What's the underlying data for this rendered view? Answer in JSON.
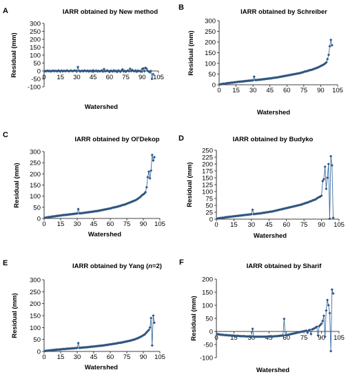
{
  "chart_data": [
    {
      "panel_letter": "A",
      "type": "line",
      "title": "IARR obtained by New method",
      "xlabel": "Watershed",
      "ylabel": "Residual (mm)",
      "xlim": [
        0,
        105
      ],
      "ylim": [
        -100,
        300
      ],
      "xticks": [
        0,
        15,
        30,
        45,
        60,
        75,
        90,
        105
      ],
      "yticks": [
        -100,
        -50,
        0,
        50,
        100,
        150,
        200,
        250,
        300
      ],
      "ytick_labels": [
        "-100",
        "-50",
        "0",
        "50",
        "100",
        "150",
        "200",
        "250",
        "300"
      ],
      "x_axis_at": 0,
      "x": [
        1,
        2,
        3,
        4,
        5,
        6,
        7,
        8,
        9,
        10,
        11,
        12,
        13,
        14,
        15,
        16,
        17,
        18,
        19,
        20,
        21,
        22,
        23,
        24,
        25,
        26,
        27,
        28,
        29,
        30,
        31,
        32,
        33,
        34,
        35,
        36,
        37,
        38,
        39,
        40,
        41,
        42,
        43,
        44,
        45,
        46,
        47,
        48,
        49,
        50,
        51,
        52,
        53,
        54,
        55,
        56,
        57,
        58,
        59,
        60,
        61,
        62,
        63,
        64,
        65,
        66,
        67,
        68,
        69,
        70,
        71,
        72,
        73,
        74,
        75,
        76,
        77,
        78,
        79,
        80,
        81,
        82,
        83,
        84,
        85,
        86,
        87,
        88,
        89,
        90,
        91,
        92,
        93,
        94,
        95,
        96,
        97,
        98,
        99,
        100
      ],
      "values": [
        0,
        -2,
        2,
        -1,
        1,
        -3,
        0,
        2,
        -1,
        1,
        0,
        -2,
        3,
        -1,
        0,
        2,
        -2,
        1,
        0,
        -1,
        3,
        0,
        -2,
        1,
        2,
        -1,
        0,
        3,
        1,
        -2,
        25,
        2,
        -3,
        0,
        1,
        -2,
        3,
        0,
        -1,
        2,
        -3,
        1,
        0,
        -2,
        4,
        -1,
        0,
        2,
        -3,
        1,
        -2,
        0,
        3,
        -4,
        12,
        -2,
        0,
        3,
        -1,
        -6,
        2,
        0,
        -3,
        4,
        -2,
        1,
        -6,
        3,
        0,
        -5,
        2,
        10,
        -3,
        1,
        -4,
        0,
        3,
        -2,
        14,
        -1,
        6,
        0,
        -2,
        3,
        -5,
        2,
        -1,
        0,
        -4,
        12,
        16,
        -2,
        20,
        15,
        2,
        -3,
        -8,
        0,
        -50,
        -20
      ],
      "series_color": "#3b6ea5",
      "marker_color": "#2e5580",
      "grid": false
    },
    {
      "panel_letter": "B",
      "type": "line",
      "title": "IARR obtained by Schreiber",
      "xlabel": "Watershed",
      "ylabel": "Residual (mm)",
      "xlim": [
        0,
        105
      ],
      "ylim": [
        0,
        300
      ],
      "xticks": [
        0,
        15,
        30,
        45,
        60,
        75,
        90,
        105
      ],
      "yticks": [
        0,
        50,
        100,
        150,
        200,
        250,
        300
      ],
      "ytick_labels": [
        "0",
        "50",
        "100",
        "150",
        "200",
        "250",
        "300"
      ],
      "x_axis_at": 0,
      "x": [
        1,
        2,
        3,
        4,
        5,
        6,
        7,
        8,
        9,
        10,
        11,
        12,
        13,
        14,
        15,
        16,
        17,
        18,
        19,
        20,
        21,
        22,
        23,
        24,
        25,
        26,
        27,
        28,
        29,
        30,
        31,
        32,
        33,
        34,
        35,
        36,
        37,
        38,
        39,
        40,
        41,
        42,
        43,
        44,
        45,
        46,
        47,
        48,
        49,
        50,
        51,
        52,
        53,
        54,
        55,
        56,
        57,
        58,
        59,
        60,
        61,
        62,
        63,
        64,
        65,
        66,
        67,
        68,
        69,
        70,
        71,
        72,
        73,
        74,
        75,
        76,
        77,
        78,
        79,
        80,
        81,
        82,
        83,
        84,
        85,
        86,
        87,
        88,
        89,
        90,
        91,
        92,
        93,
        94,
        95,
        96,
        97,
        98,
        99,
        100
      ],
      "values": [
        2,
        3,
        4,
        5,
        5,
        6,
        7,
        8,
        8,
        9,
        10,
        10,
        11,
        12,
        12,
        13,
        14,
        14,
        15,
        15,
        16,
        16,
        17,
        18,
        18,
        19,
        19,
        20,
        20,
        21,
        38,
        22,
        22,
        23,
        23,
        24,
        24,
        25,
        26,
        26,
        27,
        28,
        28,
        29,
        30,
        30,
        31,
        32,
        33,
        33,
        34,
        35,
        36,
        37,
        38,
        39,
        40,
        41,
        42,
        43,
        44,
        45,
        46,
        47,
        48,
        49,
        50,
        51,
        52,
        53,
        54,
        55,
        57,
        58,
        60,
        62,
        63,
        64,
        66,
        68,
        69,
        70,
        72,
        74,
        76,
        78,
        80,
        82,
        85,
        88,
        90,
        93,
        96,
        100,
        105,
        120,
        140,
        180,
        210,
        185
      ],
      "series_color": "#3b6ea5",
      "marker_color": "#2e5580",
      "grid": false
    },
    {
      "panel_letter": "C",
      "type": "line",
      "title": "IARR obtained by Ol'Dekop",
      "xlabel": "Watershed",
      "ylabel": "Residual (mm)",
      "xlim": [
        0,
        105
      ],
      "ylim": [
        0,
        300
      ],
      "xticks": [
        0,
        15,
        30,
        45,
        60,
        75,
        90,
        105
      ],
      "yticks": [
        0,
        50,
        100,
        150,
        200,
        250,
        300
      ],
      "ytick_labels": [
        "0",
        "50",
        "100",
        "150",
        "200",
        "250",
        "300"
      ],
      "x_axis_at": 0,
      "x": [
        1,
        2,
        3,
        4,
        5,
        6,
        7,
        8,
        9,
        10,
        11,
        12,
        13,
        14,
        15,
        16,
        17,
        18,
        19,
        20,
        21,
        22,
        23,
        24,
        25,
        26,
        27,
        28,
        29,
        30,
        31,
        32,
        33,
        34,
        35,
        36,
        37,
        38,
        39,
        40,
        41,
        42,
        43,
        44,
        45,
        46,
        47,
        48,
        49,
        50,
        51,
        52,
        53,
        54,
        55,
        56,
        57,
        58,
        59,
        60,
        61,
        62,
        63,
        64,
        65,
        66,
        67,
        68,
        69,
        70,
        71,
        72,
        73,
        74,
        75,
        76,
        77,
        78,
        79,
        80,
        81,
        82,
        83,
        84,
        85,
        86,
        87,
        88,
        89,
        90,
        91,
        92,
        93,
        94,
        95,
        96,
        97,
        98,
        99,
        100
      ],
      "values": [
        3,
        4,
        5,
        6,
        6,
        7,
        8,
        9,
        9,
        10,
        11,
        11,
        12,
        13,
        13,
        14,
        15,
        15,
        16,
        16,
        17,
        17,
        18,
        19,
        19,
        20,
        20,
        21,
        22,
        22,
        42,
        23,
        23,
        24,
        24,
        25,
        26,
        26,
        27,
        28,
        28,
        29,
        30,
        30,
        31,
        32,
        33,
        33,
        34,
        35,
        36,
        37,
        38,
        39,
        40,
        41,
        42,
        43,
        44,
        45,
        46,
        48,
        49,
        50,
        51,
        52,
        54,
        55,
        56,
        58,
        60,
        61,
        62,
        64,
        66,
        68,
        70,
        72,
        74,
        76,
        78,
        80,
        82,
        85,
        88,
        92,
        95,
        100,
        105,
        108,
        112,
        118,
        140,
        185,
        210,
        180,
        215,
        285,
        260,
        275
      ],
      "series_color": "#3b6ea5",
      "marker_color": "#2e5580",
      "grid": false
    },
    {
      "panel_letter": "D",
      "type": "line",
      "title": "IARR obtained by Budyko",
      "xlabel": "Watershed",
      "ylabel": "Residual (mm)",
      "xlim": [
        0,
        105
      ],
      "ylim": [
        0,
        250
      ],
      "xticks": [
        0,
        15,
        30,
        45,
        60,
        75,
        90,
        105
      ],
      "yticks": [
        0,
        25,
        50,
        75,
        100,
        125,
        150,
        175,
        200,
        225,
        250
      ],
      "ytick_labels": [
        "0",
        "25",
        "50",
        "75",
        "100",
        "125",
        "150",
        "175",
        "200",
        "225",
        "250"
      ],
      "x_axis_at": 0,
      "x": [
        1,
        2,
        3,
        4,
        5,
        6,
        7,
        8,
        9,
        10,
        11,
        12,
        13,
        14,
        15,
        16,
        17,
        18,
        19,
        20,
        21,
        22,
        23,
        24,
        25,
        26,
        27,
        28,
        29,
        30,
        31,
        32,
        33,
        34,
        35,
        36,
        37,
        38,
        39,
        40,
        41,
        42,
        43,
        44,
        45,
        46,
        47,
        48,
        49,
        50,
        51,
        52,
        53,
        54,
        55,
        56,
        57,
        58,
        59,
        60,
        61,
        62,
        63,
        64,
        65,
        66,
        67,
        68,
        69,
        70,
        71,
        72,
        73,
        74,
        75,
        76,
        77,
        78,
        79,
        80,
        81,
        82,
        83,
        84,
        85,
        86,
        87,
        88,
        89,
        90,
        91,
        92,
        93,
        94,
        95,
        96,
        97,
        98,
        99,
        100
      ],
      "values": [
        2,
        3,
        4,
        4,
        5,
        5,
        6,
        7,
        7,
        8,
        8,
        9,
        9,
        10,
        10,
        11,
        11,
        12,
        12,
        13,
        13,
        14,
        14,
        15,
        15,
        16,
        16,
        17,
        17,
        18,
        34,
        18,
        19,
        19,
        20,
        20,
        21,
        21,
        22,
        23,
        23,
        24,
        25,
        25,
        26,
        27,
        27,
        28,
        29,
        30,
        31,
        32,
        33,
        34,
        35,
        36,
        37,
        38,
        39,
        40,
        41,
        42,
        43,
        44,
        45,
        46,
        47,
        48,
        49,
        50,
        51,
        52,
        53,
        55,
        56,
        58,
        59,
        60,
        62,
        64,
        65,
        67,
        69,
        70,
        72,
        75,
        78,
        80,
        82,
        85,
        138,
        145,
        190,
        110,
        150,
        200,
        2,
        228,
        195,
        5
      ],
      "series_color": "#3b6ea5",
      "marker_color": "#2e5580",
      "grid": false
    },
    {
      "panel_letter": "E",
      "type": "line",
      "title_prefix": "IARR obtained by Yang (",
      "title_italic": "n",
      "title_suffix": "=2)",
      "xlabel": "Watershed",
      "ylabel": "Residual (mm)",
      "xlim": [
        0,
        105
      ],
      "ylim": [
        0,
        300
      ],
      "xticks": [
        0,
        15,
        30,
        45,
        60,
        75,
        90,
        105
      ],
      "yticks": [
        0,
        50,
        100,
        150,
        200,
        250,
        300
      ],
      "ytick_labels": [
        "0",
        "50",
        "100",
        "150",
        "200",
        "250",
        "300"
      ],
      "x_axis_at": 0,
      "x": [
        1,
        2,
        3,
        4,
        5,
        6,
        7,
        8,
        9,
        10,
        11,
        12,
        13,
        14,
        15,
        16,
        17,
        18,
        19,
        20,
        21,
        22,
        23,
        24,
        25,
        26,
        27,
        28,
        29,
        30,
        31,
        32,
        33,
        34,
        35,
        36,
        37,
        38,
        39,
        40,
        41,
        42,
        43,
        44,
        45,
        46,
        47,
        48,
        49,
        50,
        51,
        52,
        53,
        54,
        55,
        56,
        57,
        58,
        59,
        60,
        61,
        62,
        63,
        64,
        65,
        66,
        67,
        68,
        69,
        70,
        71,
        72,
        73,
        74,
        75,
        76,
        77,
        78,
        79,
        80,
        81,
        82,
        83,
        84,
        85,
        86,
        87,
        88,
        89,
        90,
        91,
        92,
        93,
        94,
        95,
        96,
        97,
        98,
        99,
        100
      ],
      "values": [
        2,
        3,
        3,
        4,
        4,
        5,
        5,
        6,
        6,
        7,
        7,
        8,
        8,
        8,
        9,
        9,
        10,
        10,
        10,
        11,
        11,
        12,
        12,
        12,
        13,
        13,
        13,
        14,
        14,
        15,
        35,
        15,
        15,
        16,
        16,
        17,
        17,
        17,
        18,
        18,
        19,
        19,
        20,
        20,
        21,
        21,
        22,
        22,
        23,
        23,
        24,
        24,
        25,
        25,
        26,
        27,
        27,
        28,
        29,
        30,
        30,
        31,
        32,
        32,
        33,
        34,
        35,
        36,
        36,
        37,
        38,
        39,
        40,
        41,
        42,
        43,
        44,
        45,
        46,
        48,
        49,
        50,
        52,
        54,
        55,
        58,
        60,
        62,
        65,
        68,
        70,
        75,
        80,
        85,
        90,
        100,
        140,
        25,
        150,
        120
      ],
      "series_color": "#3b6ea5",
      "marker_color": "#2e5580",
      "grid": false
    },
    {
      "panel_letter": "F",
      "type": "line",
      "title": "IARR obtained by Sharif",
      "xlabel": "Watershed",
      "ylabel": "Residual (mm)",
      "xlim": [
        0,
        105
      ],
      "ylim": [
        -100,
        200
      ],
      "xticks": [
        0,
        15,
        30,
        45,
        60,
        75,
        90,
        105
      ],
      "yticks": [
        -100,
        -50,
        0,
        50,
        100,
        150,
        200
      ],
      "ytick_labels": [
        "-100",
        "-50",
        "0",
        "50",
        "100",
        "150",
        "200"
      ],
      "x_axis_at": 0,
      "x": [
        1,
        2,
        3,
        4,
        5,
        6,
        7,
        8,
        9,
        10,
        11,
        12,
        13,
        14,
        15,
        16,
        17,
        18,
        19,
        20,
        21,
        22,
        23,
        24,
        25,
        26,
        27,
        28,
        29,
        30,
        31,
        32,
        33,
        34,
        35,
        36,
        37,
        38,
        39,
        40,
        41,
        42,
        43,
        44,
        45,
        46,
        47,
        48,
        49,
        50,
        51,
        52,
        53,
        54,
        55,
        56,
        57,
        58,
        59,
        60,
        61,
        62,
        63,
        64,
        65,
        66,
        67,
        68,
        69,
        70,
        71,
        72,
        73,
        74,
        75,
        76,
        77,
        78,
        79,
        80,
        81,
        82,
        83,
        84,
        85,
        86,
        87,
        88,
        89,
        90,
        91,
        92,
        93,
        94,
        95,
        96,
        97,
        98,
        99,
        100
      ],
      "values": [
        -10,
        -11,
        -12,
        -12,
        -13,
        -13,
        -14,
        -14,
        -14,
        -15,
        -15,
        -15,
        -16,
        -16,
        -16,
        -17,
        -17,
        -17,
        -17,
        -18,
        -18,
        -18,
        -18,
        -18,
        -19,
        -19,
        -19,
        -19,
        -19,
        -20,
        10,
        -20,
        -20,
        -20,
        -20,
        -20,
        -20,
        -20,
        -20,
        -20,
        -20,
        -20,
        -20,
        -20,
        -19,
        -19,
        -19,
        -19,
        -19,
        -18,
        -18,
        -18,
        -17,
        -17,
        -16,
        -16,
        -15,
        48,
        -14,
        -14,
        -13,
        -12,
        -11,
        -10,
        -9,
        -8,
        -7,
        -6,
        -5,
        -4,
        -3,
        -2,
        -1,
        0,
        1,
        2,
        3,
        -5,
        4,
        6,
        -10,
        8,
        10,
        12,
        15,
        18,
        -15,
        20,
        25,
        30,
        40,
        60,
        -20,
        80,
        120,
        100,
        70,
        -75,
        160,
        145
      ],
      "series_color": "#3b6ea5",
      "marker_color": "#2e5580",
      "grid": false
    }
  ]
}
